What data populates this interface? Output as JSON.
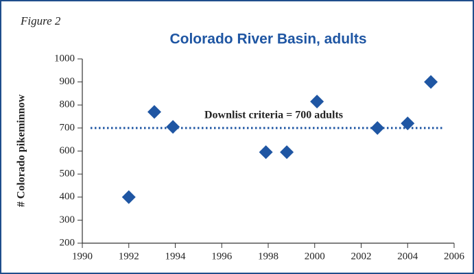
{
  "chart_data": {
    "type": "scatter",
    "figure_label": "Figure 2",
    "title": "Colorado River Basin, adults",
    "ylabel": "# Colorado pikeminnow",
    "x": [
      1992,
      1993.1,
      1993.9,
      1997.9,
      1998.8,
      2000.1,
      2002.7,
      2004.0,
      2005.0
    ],
    "values": [
      400,
      770,
      705,
      595,
      595,
      815,
      700,
      720,
      900
    ],
    "color": "#1f56a3",
    "xlim": [
      1990,
      2006
    ],
    "xticks": [
      1990,
      1992,
      1994,
      1996,
      1998,
      2000,
      2002,
      2004,
      2006
    ],
    "ylim": [
      200,
      1000
    ],
    "yticks": [
      200,
      300,
      400,
      500,
      600,
      700,
      800,
      900,
      1000
    ],
    "reference_line": {
      "value": 700,
      "label": "Downlist criteria = 700 adults",
      "color": "#1f56a3"
    },
    "grid": false
  }
}
